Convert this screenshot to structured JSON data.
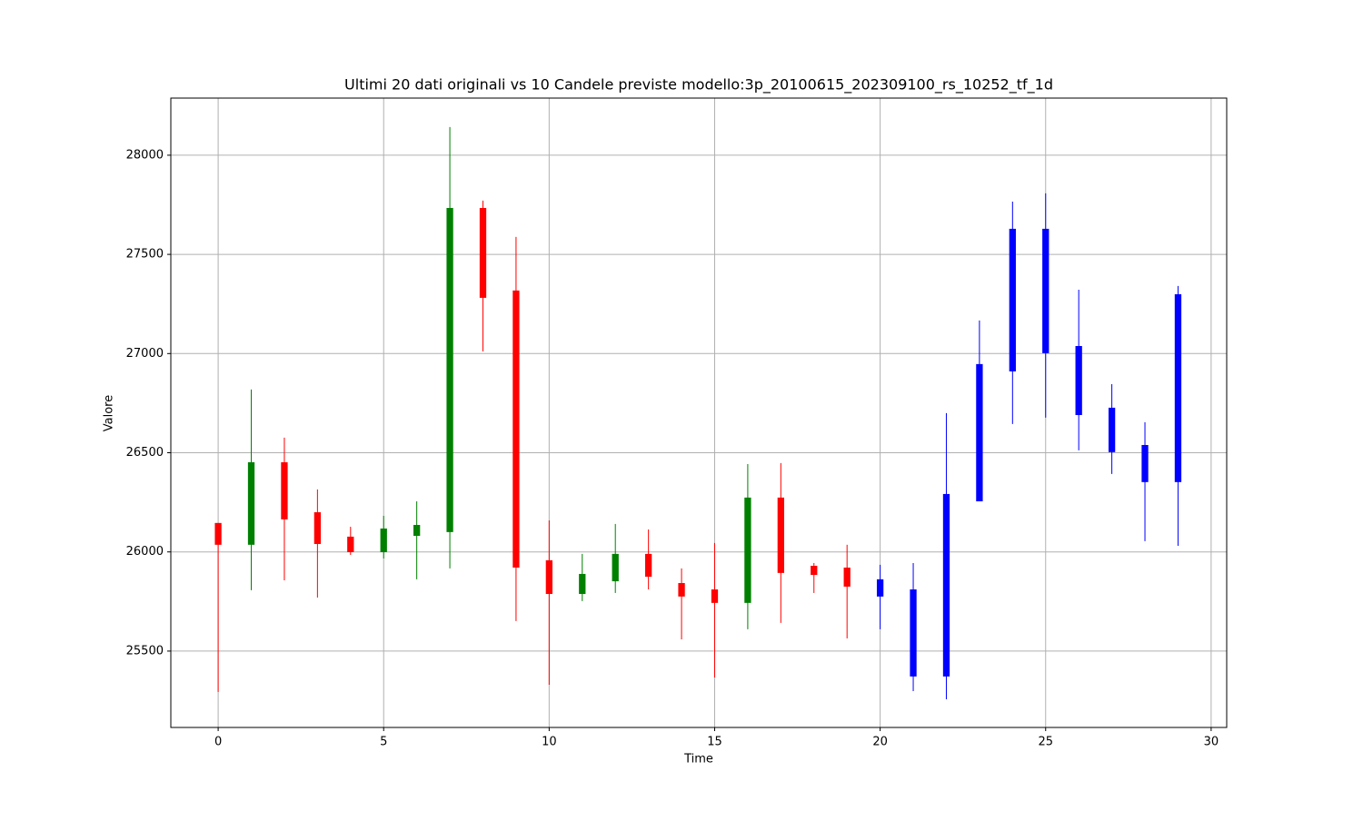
{
  "chart_data": {
    "type": "candlestick",
    "title": "Ultimi 20 dati originali vs 10 Candele previste modello:3p_20100615_202309100_rs_10252_tf_1d",
    "xlabel": "Time",
    "ylabel": "Valore",
    "x": [
      0,
      1,
      2,
      3,
      4,
      5,
      6,
      7,
      8,
      9,
      10,
      11,
      12,
      13,
      14,
      15,
      16,
      17,
      18,
      19,
      20,
      21,
      22,
      23,
      24,
      25,
      26,
      27,
      28,
      29
    ],
    "open": [
      26146,
      26036,
      26452,
      26200,
      26077,
      25999,
      26081,
      26100,
      27734,
      27318,
      25958,
      25788,
      25852,
      25990,
      25843,
      25811,
      25743,
      26274,
      25930,
      25921,
      25862,
      25811,
      25372,
      26255,
      26910,
      27629,
      27038,
      26727,
      26539,
      26352
    ],
    "high": [
      26146,
      26819,
      26576,
      26315,
      26127,
      26182,
      26255,
      28142,
      27771,
      27588,
      26159,
      25990,
      26141,
      26113,
      25917,
      26045,
      26443,
      26448,
      25944,
      26036,
      25935,
      25944,
      26700,
      27167,
      27766,
      27808,
      27322,
      26846,
      26654,
      27341
    ],
    "low": [
      25294,
      25807,
      25857,
      25770,
      25985,
      25967,
      25862,
      25917,
      27011,
      25651,
      25330,
      25752,
      25793,
      25811,
      25559,
      25367,
      25610,
      25642,
      25793,
      25564,
      25610,
      25298,
      25257,
      26255,
      26645,
      26677,
      26512,
      26393,
      26054,
      26031
    ],
    "close": [
      26036,
      26452,
      26164,
      26040,
      25999,
      26118,
      26136,
      27734,
      27281,
      25921,
      25788,
      25889,
      25990,
      25875,
      25775,
      25743,
      26274,
      25894,
      25884,
      25825,
      25775,
      25372,
      26292,
      26947,
      27629,
      27002,
      26690,
      26503,
      26352,
      27299
    ],
    "colors": [
      "red",
      "green",
      "red",
      "red",
      "red",
      "green",
      "green",
      "green",
      "red",
      "red",
      "red",
      "green",
      "green",
      "red",
      "red",
      "red",
      "green",
      "red",
      "red",
      "red",
      "blue",
      "blue",
      "blue",
      "blue",
      "blue",
      "blue",
      "blue",
      "blue",
      "blue",
      "blue"
    ],
    "xlim": [
      -1.43,
      30.47
    ],
    "ylim": [
      25115,
      28288
    ],
    "xticks": [
      0,
      5,
      10,
      15,
      20,
      25,
      30
    ],
    "yticks": [
      25500,
      26000,
      26500,
      27000,
      27500,
      28000
    ],
    "grid": true
  }
}
